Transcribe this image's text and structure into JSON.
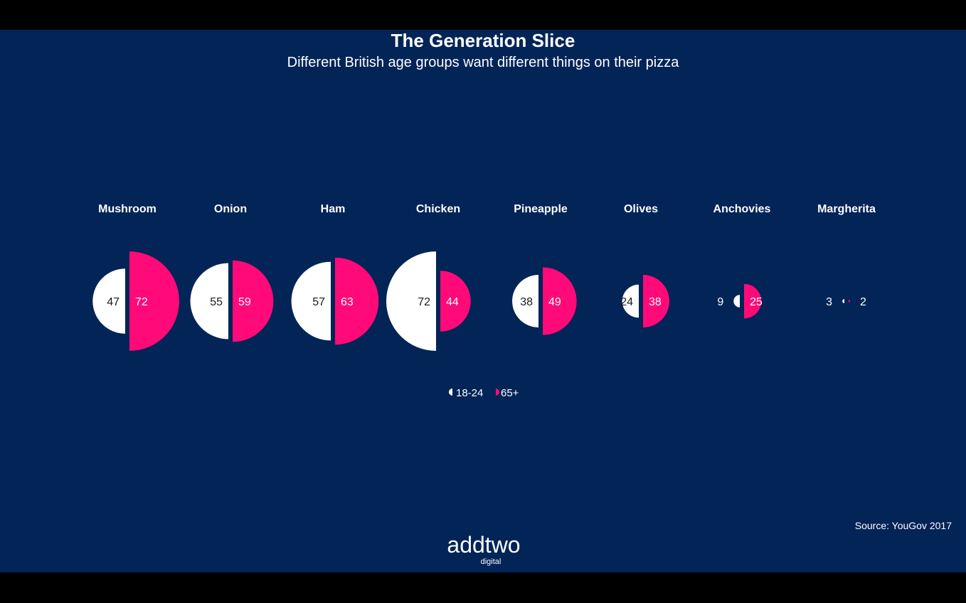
{
  "colors": {
    "background": "#022457",
    "series_18_24": "#ffffff",
    "series_65_plus": "#ff0a78",
    "text": "#ffffff",
    "text_dark": "#1a1a1a"
  },
  "chart_data": {
    "type": "semicircle-pair",
    "title": "The Generation Slice",
    "subtitle": "Different British age groups want different things on their pizza",
    "categories": [
      "Mushroom",
      "Onion",
      "Ham",
      "Chicken",
      "Pineapple",
      "Olives",
      "Anchovies",
      "Margherita"
    ],
    "series": [
      {
        "name": "18-24",
        "side": "left",
        "values": [
          47,
          55,
          57,
          72,
          38,
          24,
          9,
          3
        ]
      },
      {
        "name": "65+",
        "side": "right",
        "values": [
          72,
          59,
          63,
          44,
          49,
          38,
          25,
          2
        ]
      }
    ],
    "legend": {
      "placement": "bottom-center",
      "items": [
        "18-24",
        "65+"
      ]
    },
    "grid": false
  },
  "footer": {
    "logo_text": "addtwo",
    "logo_subtext": "digital",
    "source": "Source: YouGov 2017"
  }
}
